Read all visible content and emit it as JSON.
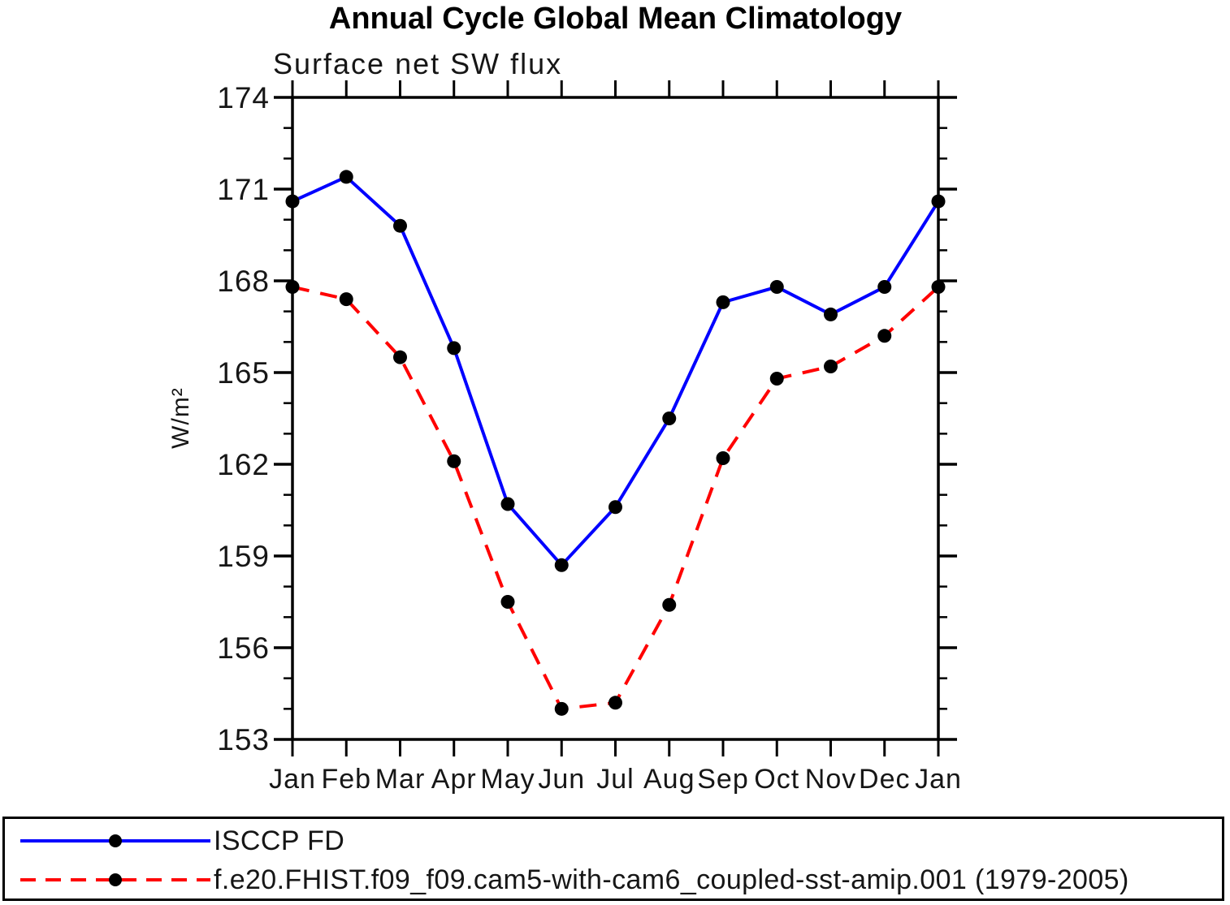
{
  "chart_data": {
    "type": "line",
    "title": "Annual Cycle Global Mean Climatology",
    "subtitle": "Surface net SW flux",
    "ylabel": "W/m²",
    "xlabel": "",
    "x_tick_labels": [
      "Jan",
      "Feb",
      "Mar",
      "Apr",
      "May",
      "Jun",
      "Jul",
      "Aug",
      "Sep",
      "Oct",
      "Nov",
      "Dec",
      "Jan"
    ],
    "y_ticks_major": [
      174,
      171,
      168,
      165,
      162,
      159,
      156,
      153
    ],
    "y_minor_step": 1,
    "ylim": [
      153,
      174
    ],
    "grid": false,
    "axis_color": "#000000",
    "legend_position": "bottom-box",
    "series": [
      {
        "name": "ISCCP FD",
        "color": "#0000ff",
        "style": "solid",
        "marker": "filled-circle",
        "marker_color": "#000000",
        "values": [
          170.6,
          171.4,
          169.8,
          165.8,
          160.7,
          158.7,
          160.6,
          163.5,
          167.3,
          167.8,
          166.9,
          167.8,
          170.6
        ]
      },
      {
        "name": "f.e20.FHIST.f09_f09.cam5-with-cam6_coupled-sst-amip.001 (1979-2005)",
        "color": "#ff0000",
        "style": "dashed",
        "marker": "filled-circle",
        "marker_color": "#000000",
        "values": [
          167.8,
          167.4,
          165.5,
          162.1,
          157.5,
          154.0,
          154.2,
          157.4,
          162.2,
          164.8,
          165.2,
          166.2,
          167.8
        ]
      }
    ]
  }
}
